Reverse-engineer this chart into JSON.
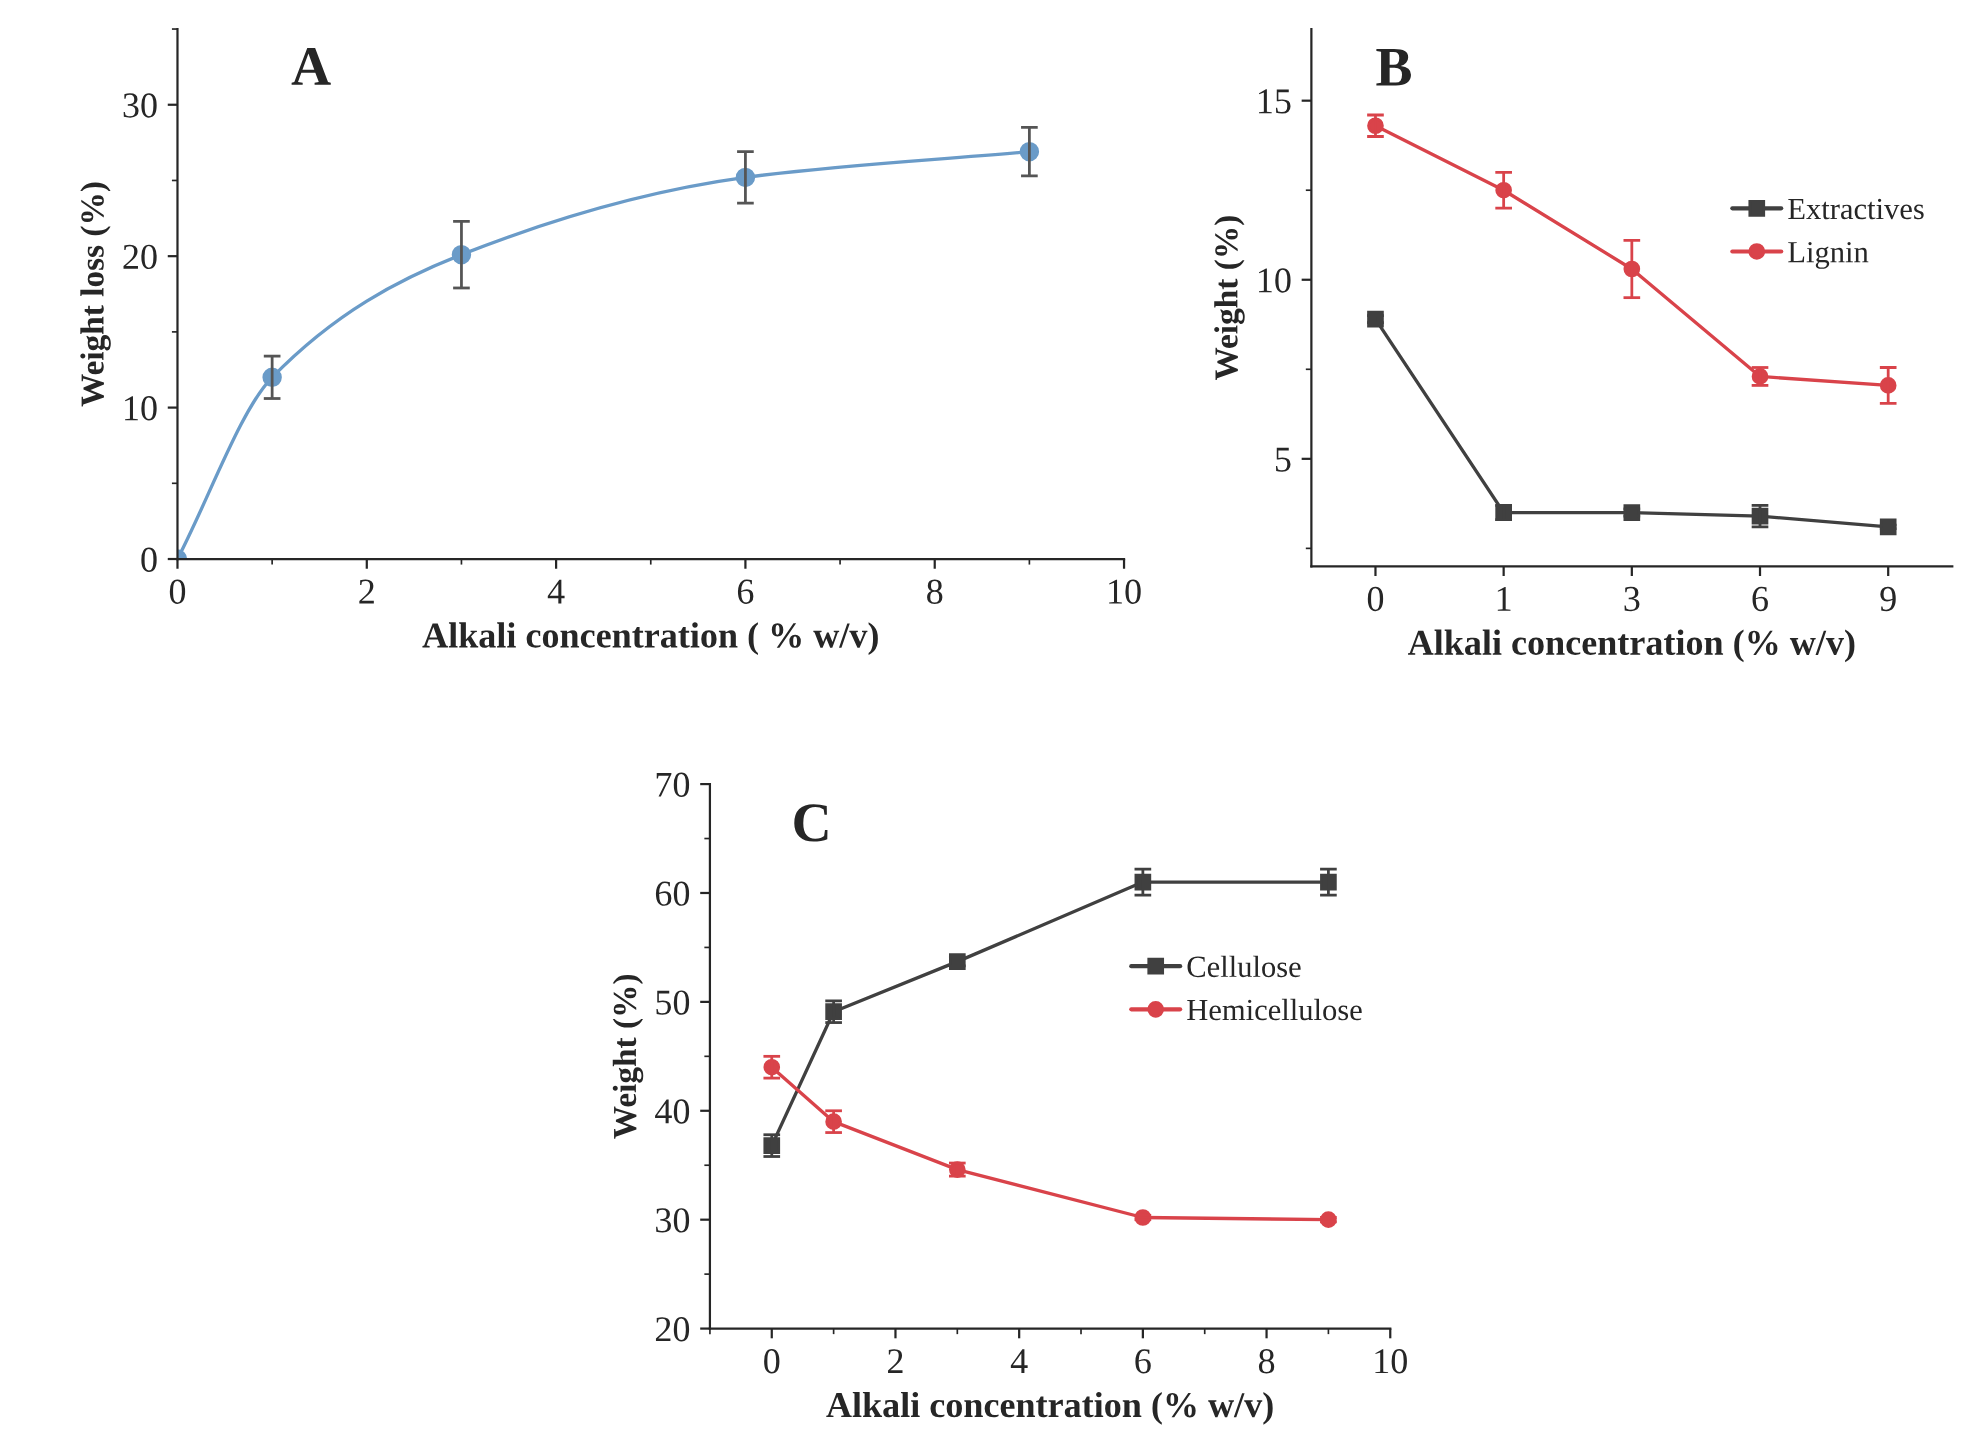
{
  "chart_data": [
    {
      "type": "line",
      "title": "A",
      "xlabel": "Alkali concentration ( % w/v)",
      "ylabel": "Weight loss (%)",
      "x": [
        0,
        1,
        3,
        6,
        9
      ],
      "xlim": [
        0,
        10
      ],
      "xticks": [
        0,
        2,
        4,
        6,
        8,
        10
      ],
      "ylim": [
        0,
        35
      ],
      "yticks": [
        0,
        10,
        20,
        30
      ],
      "grid": false,
      "legend": false,
      "marker": "circle",
      "line_style": "solid",
      "series": [
        {
          "color": "#6a9bc8",
          "values": [
            0,
            12.0,
            20.1,
            25.2,
            26.9
          ],
          "errors": [
            null,
            1.4,
            2.2,
            1.7,
            1.6
          ]
        }
      ]
    },
    {
      "type": "line",
      "title": "B",
      "xlabel": "Alkali concentration (% w/v)",
      "ylabel": "Weight (%)",
      "categories": [
        "0",
        "1",
        "3",
        "6",
        "9"
      ],
      "ylim": [
        2,
        17
      ],
      "yticks": [
        5,
        10,
        15
      ],
      "grid": false,
      "legend": "right",
      "line_style": "solid",
      "series": [
        {
          "name": "Extractives",
          "color": "#404040",
          "marker": "square",
          "values": [
            8.9,
            3.5,
            3.5,
            3.4,
            3.1
          ],
          "errors": [
            0.1,
            0.2,
            0.1,
            0.3,
            0.05
          ]
        },
        {
          "name": "Lignin",
          "color": "#d9434a",
          "marker": "circle",
          "values": [
            14.3,
            12.5,
            10.3,
            7.3,
            7.05
          ],
          "errors": [
            0.3,
            0.5,
            0.8,
            0.25,
            0.5
          ]
        }
      ]
    },
    {
      "type": "line",
      "title": "C",
      "xlabel": "Alkali concentration (% w/v)",
      "ylabel": "Weight (%)",
      "x": [
        0,
        1,
        3,
        6,
        9
      ],
      "xlim": [
        -1,
        10
      ],
      "xticks": [
        0,
        2,
        4,
        6,
        8,
        10
      ],
      "ylim": [
        20,
        70
      ],
      "yticks": [
        20,
        30,
        40,
        50,
        60,
        70
      ],
      "grid": false,
      "legend": "right",
      "line_style": "solid",
      "series": [
        {
          "name": "Cellulose",
          "color": "#404040",
          "marker": "square",
          "values": [
            36.8,
            49.1,
            53.7,
            61.0,
            61.0
          ],
          "errors": [
            1.0,
            1.0,
            0.4,
            1.2,
            1.2
          ]
        },
        {
          "name": "Hemicellulose",
          "color": "#d9434a",
          "marker": "circle",
          "values": [
            44.0,
            39.0,
            34.6,
            30.2,
            30.0
          ],
          "errors": [
            1.0,
            1.0,
            0.6,
            0.2,
            0.2
          ]
        }
      ]
    }
  ]
}
